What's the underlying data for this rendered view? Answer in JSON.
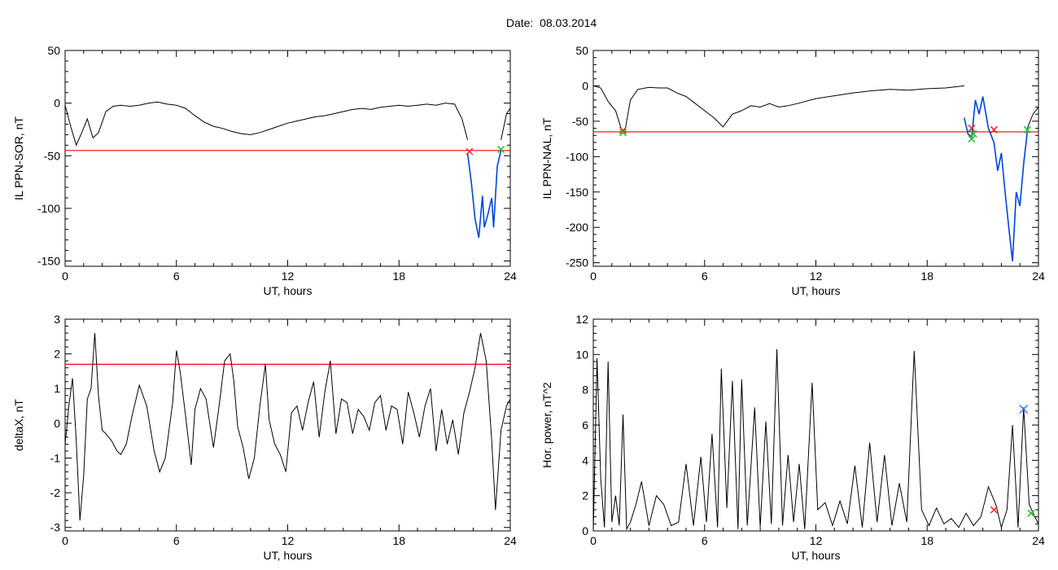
{
  "date": {
    "label": "Date:",
    "value": "08.03.2014"
  },
  "colors": {
    "trace": "#000000",
    "threshold": "#ff0000",
    "event": "#0044dd",
    "start_marker": "#ff2222",
    "end_marker": "#22bb22",
    "peak_marker": "#3377ff"
  },
  "chart_data": [
    {
      "type": "line",
      "panel": "top-left",
      "ylabel": "IL PPN-SOR, nT",
      "xlabel": "UT, hours",
      "xlim": [
        0,
        24
      ],
      "ylim": [
        -155,
        50
      ],
      "xticks": [
        0,
        6,
        12,
        18,
        24
      ],
      "yticks": [
        -150,
        -100,
        -50,
        0,
        50
      ],
      "threshold": -45,
      "series": [
        {
          "x": [
            0,
            0.3,
            0.6,
            0.9,
            1.2,
            1.5,
            1.8,
            2.2,
            2.6,
            3,
            3.5,
            4,
            4.5,
            5,
            5.5,
            6,
            6.5,
            7,
            7.5,
            8,
            8.5,
            9,
            9.5,
            10,
            10.5,
            11,
            11.5,
            12,
            12.5,
            13,
            13.5,
            14,
            14.5,
            15,
            15.5,
            16,
            16.5,
            17,
            17.5,
            18,
            18.5,
            19,
            19.5,
            20,
            20.5,
            21,
            21.4,
            21.7
          ],
          "y": [
            -2,
            -22,
            -40,
            -28,
            -15,
            -33,
            -28,
            -8,
            -3,
            -2,
            -3,
            -2,
            0,
            1,
            -1,
            -2,
            -5,
            -12,
            -18,
            -22,
            -24,
            -27,
            -29,
            -30,
            -28,
            -25,
            -22,
            -19,
            -17,
            -15,
            -13,
            -12,
            -10,
            -8,
            -6,
            -5,
            -6,
            -4,
            -3,
            -2,
            -3,
            -2,
            -1,
            -2,
            0,
            -1,
            -15,
            -35
          ]
        },
        {
          "x": [
            21.7,
            21.9,
            22.1,
            22.3,
            22.5,
            22.6,
            22.8,
            23.0,
            23.1,
            23.3,
            23.5
          ],
          "y": [
            -48,
            -75,
            -110,
            -128,
            -88,
            -118,
            -105,
            -90,
            -118,
            -60,
            -45
          ]
        },
        {
          "x": [
            23.5,
            23.8,
            24
          ],
          "y": [
            -35,
            -10,
            -5
          ]
        }
      ],
      "markers": [
        {
          "kind": "start",
          "x": 21.8,
          "y": -46
        },
        {
          "kind": "end",
          "x": 23.5,
          "y": -44
        }
      ]
    },
    {
      "type": "line",
      "panel": "top-right",
      "ylabel": "IL PPN-NAL, nT",
      "xlabel": "UT, hours",
      "xlim": [
        0,
        24
      ],
      "ylim": [
        -255,
        50
      ],
      "xticks": [
        0,
        6,
        12,
        18,
        24
      ],
      "yticks": [
        -250,
        -200,
        -150,
        -100,
        -50,
        0,
        50
      ],
      "threshold": -65,
      "series": [
        {
          "x": [
            0,
            0.4,
            0.8,
            1.2,
            1.5,
            1.7,
            2,
            2.4,
            3,
            3.5,
            4,
            4.5,
            5,
            5.5,
            6,
            6.5,
            7,
            7.5,
            8,
            8.5,
            9,
            9.5,
            10,
            10.5,
            11,
            12,
            13,
            14,
            15,
            16,
            17,
            18,
            19,
            20
          ],
          "y": [
            0,
            -3,
            -22,
            -35,
            -60,
            -65,
            -20,
            -5,
            -2,
            -3,
            -3,
            -10,
            -15,
            -25,
            -35,
            -45,
            -58,
            -40,
            -35,
            -28,
            -30,
            -25,
            -30,
            -28,
            -25,
            -18,
            -14,
            -10,
            -7,
            -5,
            -6,
            -4,
            -3,
            0
          ]
        },
        {
          "x": [
            20,
            20.2,
            20.4,
            20.6,
            20.8,
            21,
            21.3,
            21.6,
            21.8,
            22,
            22.2,
            22.4,
            22.6,
            22.8,
            23,
            23.2,
            23.4
          ],
          "y": [
            -45,
            -68,
            -72,
            -20,
            -40,
            -15,
            -60,
            -80,
            -120,
            -95,
            -150,
            -200,
            -248,
            -150,
            -170,
            -110,
            -65
          ]
        },
        {
          "x": [
            23.4,
            23.7,
            24
          ],
          "y": [
            -60,
            -40,
            -30
          ]
        }
      ],
      "markers": [
        {
          "kind": "start",
          "x": 1.6,
          "y": -63
        },
        {
          "kind": "end",
          "x": 1.6,
          "y": -66
        },
        {
          "kind": "start",
          "x": 20.4,
          "y": -60
        },
        {
          "kind": "end",
          "x": 20.5,
          "y": -68
        },
        {
          "kind": "end",
          "x": 20.4,
          "y": -75
        },
        {
          "kind": "start",
          "x": 21.6,
          "y": -62
        },
        {
          "kind": "end",
          "x": 23.4,
          "y": -62
        }
      ]
    },
    {
      "type": "line",
      "panel": "bottom-left",
      "ylabel": "deltaX, nT",
      "xlabel": "UT, hours",
      "xlim": [
        0,
        24
      ],
      "ylim": [
        -3.1,
        3
      ],
      "xticks": [
        0,
        6,
        12,
        18,
        24
      ],
      "yticks": [
        -3,
        -2,
        -1,
        0,
        1,
        2,
        3
      ],
      "threshold": 1.7,
      "series": [
        {
          "x": [
            0,
            0.2,
            0.4,
            0.6,
            0.8,
            1,
            1.2,
            1.4,
            1.6,
            1.8,
            2,
            2.2,
            2.5,
            2.8,
            3,
            3.3,
            3.6,
            4,
            4.4,
            4.8,
            5.1,
            5.4,
            5.8,
            6,
            6.2,
            6.5,
            6.8,
            7,
            7.3,
            7.6,
            8,
            8.3,
            8.6,
            8.9,
            9.1,
            9.3,
            9.6,
            9.9,
            10.2,
            10.5,
            10.8,
            11,
            11.3,
            11.6,
            11.9,
            12.2,
            12.5,
            12.8,
            13.1,
            13.4,
            13.7,
            14,
            14.3,
            14.6,
            14.9,
            15.2,
            15.5,
            15.8,
            16.1,
            16.4,
            16.7,
            17,
            17.3,
            17.6,
            17.9,
            18.2,
            18.5,
            18.8,
            19.1,
            19.4,
            19.7,
            20,
            20.3,
            20.6,
            20.9,
            21.2,
            21.5,
            21.8,
            22.1,
            22.4,
            22.7,
            23,
            23.2,
            23.5,
            23.8,
            24
          ],
          "y": [
            -0.6,
            0.5,
            1.3,
            -0.5,
            -2.8,
            -1.5,
            0.7,
            1.0,
            2.6,
            0.8,
            -0.2,
            -0.3,
            -0.5,
            -0.8,
            -0.9,
            -0.6,
            0.2,
            1.1,
            0.5,
            -0.8,
            -1.4,
            -1.0,
            0.6,
            2.1,
            1.5,
            0.2,
            -1.2,
            0.4,
            1.0,
            0.7,
            -0.7,
            0.5,
            1.8,
            2.0,
            1.2,
            -0.1,
            -0.7,
            -1.6,
            -1.0,
            0.5,
            1.7,
            0.1,
            -0.6,
            -0.9,
            -1.4,
            0.3,
            0.5,
            -0.2,
            0.6,
            1.2,
            -0.4,
            0.9,
            1.8,
            -0.3,
            0.7,
            0.6,
            -0.3,
            0.4,
            0.2,
            -0.2,
            0.6,
            0.8,
            -0.2,
            0.5,
            0.4,
            -0.6,
            0.9,
            0.3,
            -0.4,
            0.5,
            1.0,
            -0.8,
            0.4,
            -0.6,
            0.1,
            -0.9,
            0.3,
            0.9,
            1.6,
            2.6,
            1.8,
            -0.5,
            -2.5,
            -0.2,
            0.5,
            0.7
          ]
        }
      ],
      "markers": []
    },
    {
      "type": "line",
      "panel": "bottom-right",
      "ylabel": "Hor. power, nT^2",
      "xlabel": "UT, hours",
      "xlim": [
        0,
        24
      ],
      "ylim": [
        0,
        12
      ],
      "xticks": [
        0,
        6,
        12,
        18,
        24
      ],
      "yticks": [
        0,
        2,
        4,
        6,
        8,
        10,
        12
      ],
      "series": [
        {
          "x": [
            0,
            0.2,
            0.4,
            0.6,
            0.8,
            1.0,
            1.2,
            1.4,
            1.6,
            1.8,
            2.0,
            2.3,
            2.6,
            3.0,
            3.4,
            3.8,
            4.2,
            4.6,
            5.0,
            5.4,
            5.8,
            6.1,
            6.4,
            6.7,
            6.9,
            7.2,
            7.5,
            7.8,
            8.0,
            8.3,
            8.7,
            9.0,
            9.3,
            9.6,
            9.9,
            10.2,
            10.5,
            10.8,
            11.1,
            11.4,
            11.8,
            12.1,
            12.5,
            12.9,
            13.3,
            13.7,
            14.1,
            14.5,
            14.9,
            15.3,
            15.7,
            16.1,
            16.5,
            16.9,
            17.3,
            17.7,
            18.1,
            18.5,
            18.9,
            19.3,
            19.7,
            20.1,
            20.5,
            20.9,
            21.3,
            21.7,
            22.0,
            22.3,
            22.6,
            22.9,
            23.2,
            23.5,
            23.8,
            24
          ],
          "y": [
            0,
            9.8,
            3,
            0.2,
            9.6,
            0.5,
            2,
            0.3,
            6.6,
            0.1,
            0.5,
            1.5,
            2.8,
            0.3,
            2,
            1.5,
            0.3,
            0.5,
            3.8,
            0.3,
            4.2,
            0.5,
            5.5,
            0.2,
            9.2,
            1.3,
            8.5,
            0.1,
            8.6,
            0.3,
            7,
            0.2,
            6.2,
            0.4,
            10.3,
            0.3,
            4.3,
            0.5,
            3.8,
            0.1,
            8.4,
            1.2,
            1.6,
            0.3,
            1.7,
            0.4,
            3.7,
            0.2,
            5,
            0.5,
            4.3,
            0.3,
            2.7,
            0.5,
            10.2,
            1.2,
            0.3,
            1.3,
            0.4,
            0.7,
            0.2,
            1,
            0.3,
            0.8,
            2.5,
            1.5,
            0.2,
            1.2,
            6,
            0.2,
            7,
            1.5,
            0.8,
            0.4
          ]
        }
      ],
      "markers": [
        {
          "kind": "start",
          "x": 21.6,
          "y": 1.2
        },
        {
          "kind": "peak",
          "x": 23.2,
          "y": 6.9
        },
        {
          "kind": "end",
          "x": 23.6,
          "y": 1.0
        }
      ]
    }
  ]
}
